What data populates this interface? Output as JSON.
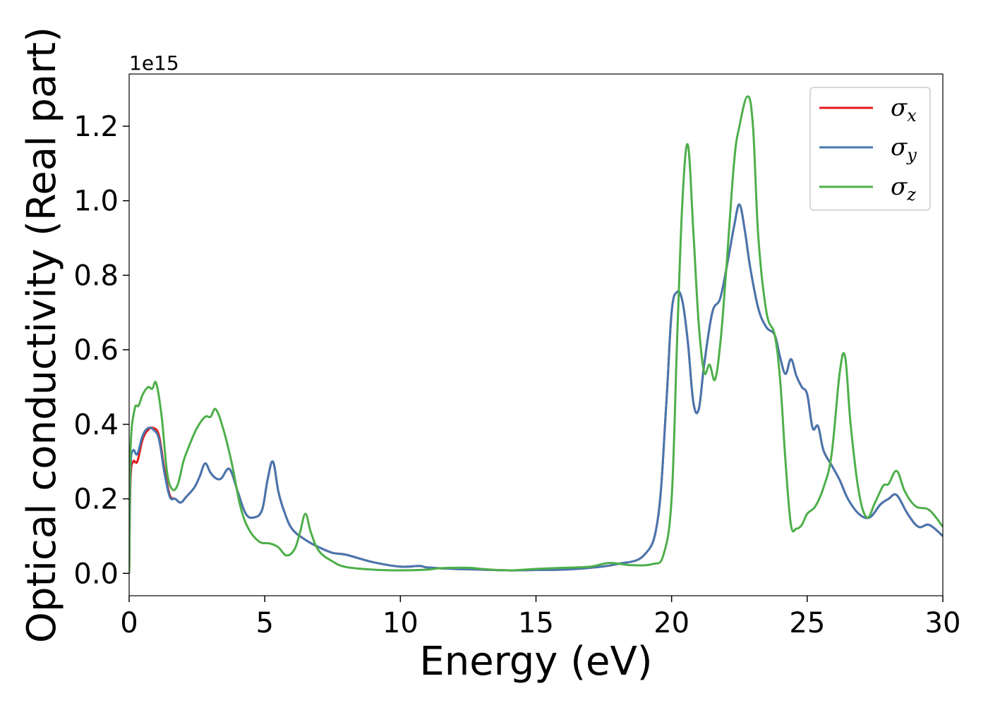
{
  "chart_data": {
    "type": "line",
    "title": "",
    "xlabel": "Energy (eV)",
    "ylabel": "Optical conductivity (Real part)",
    "y_offset_label": "1e15",
    "xlim": [
      0,
      30
    ],
    "ylim": [
      -0.06,
      1.34
    ],
    "x_ticks": [
      0,
      5,
      10,
      15,
      20,
      25,
      30
    ],
    "x_tick_labels": [
      "0",
      "5",
      "10",
      "15",
      "20",
      "25",
      "30"
    ],
    "y_ticks": [
      0.0,
      0.2,
      0.4,
      0.6,
      0.8,
      1.0,
      1.2
    ],
    "y_tick_labels": [
      "0.0",
      "0.2",
      "0.4",
      "0.6",
      "0.8",
      "1.0",
      "1.2"
    ],
    "grid": false,
    "legend_position": "top-right",
    "series": [
      {
        "name": "σx",
        "name_base": "σ",
        "name_sub": "x",
        "color": "#e41a1c",
        "x": [
          0,
          0.05,
          0.15,
          0.3,
          0.5,
          0.7,
          0.9,
          1.1,
          1.3,
          1.5,
          1.7,
          1.9,
          2.1,
          2.4,
          2.6,
          2.8,
          3.0,
          3.2,
          3.4,
          3.7,
          4.0,
          4.3,
          4.6,
          4.9,
          5.1,
          5.3,
          5.5,
          5.7,
          6.0,
          6.5,
          7.0,
          7.5,
          8.0,
          9.0,
          10.0,
          10.7,
          11.0,
          12.0,
          13.0,
          14.0,
          15.0,
          16.0,
          17.0,
          18.0,
          19.0,
          19.5,
          19.8,
          20.0,
          20.2,
          20.4,
          20.6,
          20.8,
          21.0,
          21.2,
          21.5,
          21.8,
          22.1,
          22.3,
          22.5,
          22.7,
          22.9,
          23.2,
          23.5,
          23.8,
          24.0,
          24.2,
          24.4,
          24.6,
          24.8,
          25.0,
          25.2,
          25.4,
          25.6,
          25.9,
          26.2,
          26.5,
          26.9,
          27.3,
          27.7,
          28.0,
          28.3,
          28.7,
          29.1,
          29.5,
          30.0
        ],
        "y": [
          0.0,
          0.25,
          0.3,
          0.3,
          0.36,
          0.385,
          0.39,
          0.37,
          0.28,
          0.21,
          0.2,
          0.19,
          0.205,
          0.23,
          0.26,
          0.295,
          0.27,
          0.255,
          0.255,
          0.28,
          0.22,
          0.16,
          0.15,
          0.17,
          0.25,
          0.3,
          0.22,
          0.17,
          0.12,
          0.09,
          0.07,
          0.055,
          0.05,
          0.03,
          0.018,
          0.02,
          0.016,
          0.012,
          0.01,
          0.008,
          0.009,
          0.01,
          0.015,
          0.025,
          0.05,
          0.15,
          0.45,
          0.7,
          0.755,
          0.73,
          0.62,
          0.46,
          0.44,
          0.56,
          0.7,
          0.74,
          0.85,
          0.93,
          0.99,
          0.92,
          0.82,
          0.71,
          0.66,
          0.64,
          0.58,
          0.535,
          0.575,
          0.53,
          0.5,
          0.48,
          0.39,
          0.395,
          0.33,
          0.29,
          0.25,
          0.2,
          0.16,
          0.15,
          0.185,
          0.2,
          0.21,
          0.16,
          0.125,
          0.13,
          0.1
        ]
      },
      {
        "name": "σy",
        "name_base": "σ",
        "name_sub": "y",
        "color": "#4677b0",
        "x": [
          0,
          0.05,
          0.15,
          0.3,
          0.5,
          0.7,
          0.9,
          1.1,
          1.3,
          1.5,
          1.7,
          1.9,
          2.1,
          2.4,
          2.6,
          2.8,
          3.0,
          3.2,
          3.4,
          3.7,
          4.0,
          4.3,
          4.6,
          4.9,
          5.1,
          5.3,
          5.5,
          5.7,
          6.0,
          6.5,
          7.0,
          7.5,
          8.0,
          9.0,
          10.0,
          10.7,
          11.0,
          12.0,
          13.0,
          14.0,
          15.0,
          16.0,
          17.0,
          18.0,
          19.0,
          19.5,
          19.8,
          20.0,
          20.2,
          20.4,
          20.6,
          20.8,
          21.0,
          21.2,
          21.5,
          21.8,
          22.1,
          22.3,
          22.5,
          22.7,
          22.9,
          23.2,
          23.5,
          23.8,
          24.0,
          24.2,
          24.4,
          24.6,
          24.8,
          25.0,
          25.2,
          25.4,
          25.6,
          25.9,
          26.2,
          26.5,
          26.9,
          27.3,
          27.7,
          28.0,
          28.3,
          28.7,
          29.1,
          29.5,
          30.0
        ],
        "y": [
          0.0,
          0.28,
          0.33,
          0.32,
          0.37,
          0.39,
          0.385,
          0.36,
          0.27,
          0.205,
          0.2,
          0.19,
          0.205,
          0.23,
          0.26,
          0.295,
          0.27,
          0.255,
          0.255,
          0.28,
          0.22,
          0.16,
          0.15,
          0.17,
          0.25,
          0.3,
          0.22,
          0.17,
          0.12,
          0.09,
          0.07,
          0.055,
          0.05,
          0.03,
          0.018,
          0.02,
          0.016,
          0.012,
          0.01,
          0.008,
          0.009,
          0.01,
          0.015,
          0.025,
          0.05,
          0.15,
          0.45,
          0.7,
          0.755,
          0.73,
          0.62,
          0.46,
          0.44,
          0.56,
          0.7,
          0.74,
          0.85,
          0.93,
          0.99,
          0.92,
          0.82,
          0.71,
          0.66,
          0.64,
          0.58,
          0.535,
          0.575,
          0.53,
          0.5,
          0.48,
          0.39,
          0.395,
          0.33,
          0.29,
          0.25,
          0.2,
          0.16,
          0.15,
          0.185,
          0.2,
          0.21,
          0.16,
          0.125,
          0.13,
          0.1
        ]
      },
      {
        "name": "σz",
        "name_base": "σ",
        "name_sub": "z",
        "color": "#4daf4a",
        "x": [
          0,
          0.05,
          0.2,
          0.35,
          0.5,
          0.7,
          0.85,
          1.0,
          1.2,
          1.4,
          1.6,
          1.8,
          2.0,
          2.2,
          2.5,
          2.8,
          3.0,
          3.2,
          3.5,
          3.8,
          4.1,
          4.4,
          4.8,
          5.2,
          5.5,
          5.8,
          6.1,
          6.3,
          6.5,
          6.7,
          7.0,
          7.5,
          8.0,
          9.0,
          10.0,
          11.0,
          11.5,
          12.5,
          13.0,
          14.0,
          15.0,
          16.0,
          17.0,
          17.7,
          18.5,
          19.3,
          19.7,
          20.0,
          20.2,
          20.4,
          20.6,
          20.8,
          21.0,
          21.2,
          21.4,
          21.6,
          21.8,
          22.0,
          22.3,
          22.5,
          22.8,
          23.0,
          23.2,
          23.5,
          23.8,
          24.0,
          24.2,
          24.4,
          24.6,
          24.8,
          25.0,
          25.3,
          25.6,
          25.9,
          26.2,
          26.4,
          26.6,
          26.9,
          27.2,
          27.5,
          27.8,
          28.0,
          28.3,
          28.6,
          29.0,
          29.5,
          30.0
        ],
        "y": [
          0.0,
          0.33,
          0.44,
          0.45,
          0.48,
          0.5,
          0.495,
          0.51,
          0.42,
          0.27,
          0.225,
          0.24,
          0.3,
          0.34,
          0.39,
          0.42,
          0.42,
          0.44,
          0.38,
          0.29,
          0.18,
          0.12,
          0.085,
          0.08,
          0.07,
          0.048,
          0.065,
          0.11,
          0.16,
          0.11,
          0.06,
          0.032,
          0.017,
          0.01,
          0.008,
          0.01,
          0.014,
          0.015,
          0.012,
          0.008,
          0.012,
          0.015,
          0.018,
          0.028,
          0.022,
          0.025,
          0.05,
          0.2,
          0.62,
          1.0,
          1.15,
          0.92,
          0.67,
          0.54,
          0.56,
          0.52,
          0.62,
          0.8,
          1.1,
          1.2,
          1.28,
          1.2,
          0.9,
          0.7,
          0.64,
          0.52,
          0.3,
          0.13,
          0.12,
          0.13,
          0.16,
          0.18,
          0.23,
          0.32,
          0.54,
          0.58,
          0.4,
          0.22,
          0.15,
          0.19,
          0.235,
          0.24,
          0.275,
          0.22,
          0.18,
          0.17,
          0.125
        ]
      }
    ]
  }
}
